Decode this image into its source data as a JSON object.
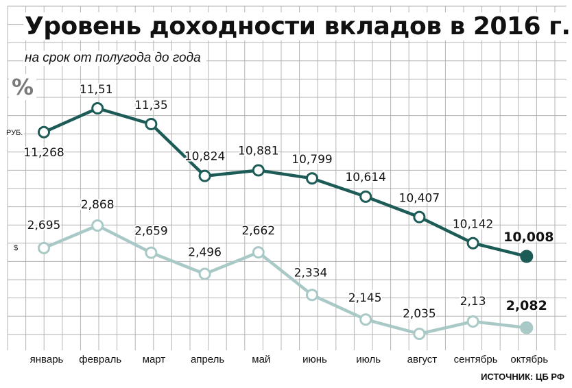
{
  "title": "Уровень доходности вкладов в 2016 г.",
  "subtitle": "на срок от полугода до года",
  "unit": "%",
  "source": "ИСТОЧНИК: ЦБ РФ",
  "colors": {
    "rub": "#1d5b57",
    "usd": "#a9c9c6",
    "grid": "#b3b3b3"
  },
  "chart_data": {
    "type": "line",
    "categories": [
      "январь",
      "февраль",
      "март",
      "апрель",
      "май",
      "июнь",
      "июль",
      "август",
      "сентябрь",
      "октябрь"
    ],
    "series": [
      {
        "name": "РУБ.",
        "values": [
          11.268,
          11.51,
          11.35,
          10.824,
          10.881,
          10.799,
          10.614,
          10.407,
          10.142,
          10.008
        ],
        "labels": [
          "11,268",
          "11,51",
          "11,35",
          "10,824",
          "10,881",
          "10,799",
          "10,614",
          "10,407",
          "10,142",
          "10,008"
        ]
      },
      {
        "name": "$",
        "values": [
          2.695,
          2.868,
          2.659,
          2.496,
          2.662,
          2.334,
          2.145,
          2.035,
          2.13,
          2.082
        ],
        "labels": [
          "2,695",
          "2,868",
          "2,659",
          "2,496",
          "2,662",
          "2,334",
          "2,145",
          "2,035",
          "2,13",
          "2,082"
        ]
      }
    ],
    "grid": true
  }
}
